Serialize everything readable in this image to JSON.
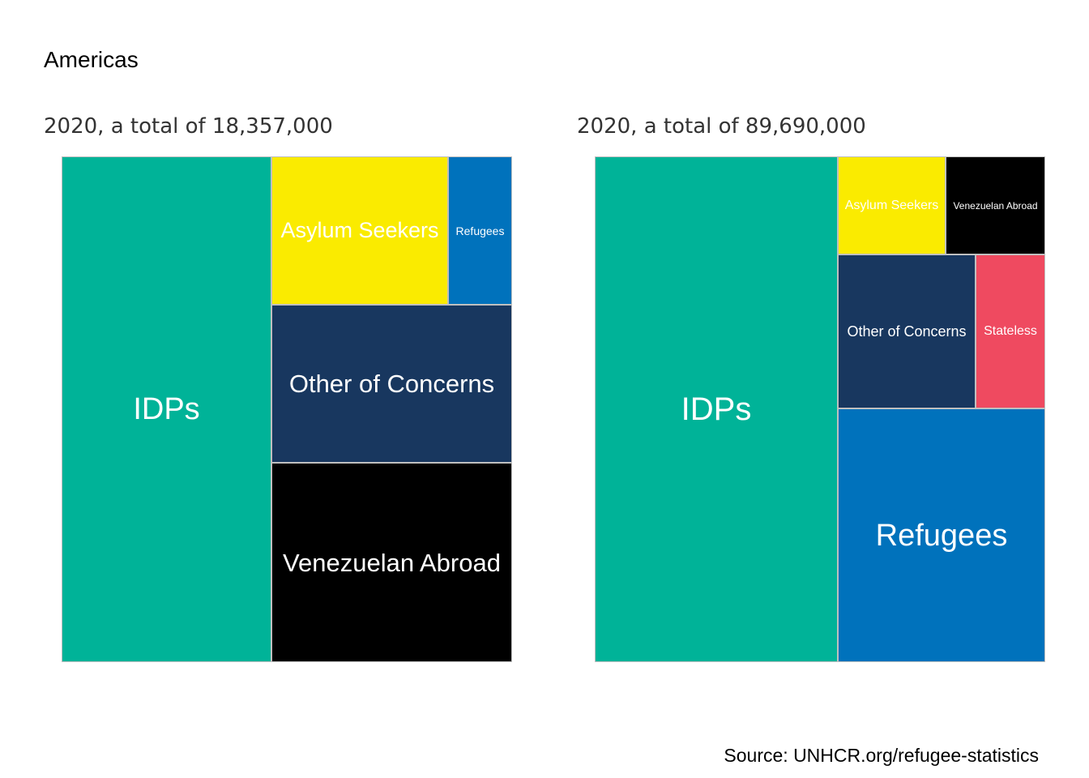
{
  "title": "Americas",
  "source": "Source: UNHCR.org/refugee-statistics",
  "colors": {
    "IDPs": "#00B398",
    "Asylum Seekers": "#FAEB00",
    "Refugees": "#0072BC",
    "Other of Concerns": "#18375F",
    "Venezuelan Abroad": "#000000",
    "Stateless": "#EF4A60"
  },
  "chart_data": [
    {
      "type": "treemap",
      "subtitle": "2020, a total of 18,357,000",
      "total": 18357000,
      "tiles": [
        {
          "name": "IDPs",
          "label": "IDPs",
          "share": 0.466
        },
        {
          "name": "Venezuelan Abroad",
          "label": "Venezuelan Abroad",
          "share": 0.208
        },
        {
          "name": "Other of Concerns",
          "label": "Other of Concerns",
          "share": 0.166
        },
        {
          "name": "Asylum Seekers",
          "label": "Asylum Seekers",
          "share": 0.116
        },
        {
          "name": "Refugees",
          "label": "Refugees",
          "share": 0.044
        }
      ]
    },
    {
      "type": "treemap",
      "subtitle": "2020, a total of 89,690,000",
      "total": 89690000,
      "tiles": [
        {
          "name": "IDPs",
          "label": "IDPs",
          "share": 0.54
        },
        {
          "name": "Refugees",
          "label": "Refugees",
          "share": 0.23
        },
        {
          "name": "Other of Concerns",
          "label": "Other of Concerns",
          "share": 0.092
        },
        {
          "name": "Asylum Seekers",
          "label": "Asylum Seekers",
          "share": 0.046
        },
        {
          "name": "Stateless",
          "label": "Stateless",
          "share": 0.047
        },
        {
          "name": "Venezuelan Abroad",
          "label": "Venezuelan Abroad",
          "share": 0.045
        }
      ]
    }
  ]
}
